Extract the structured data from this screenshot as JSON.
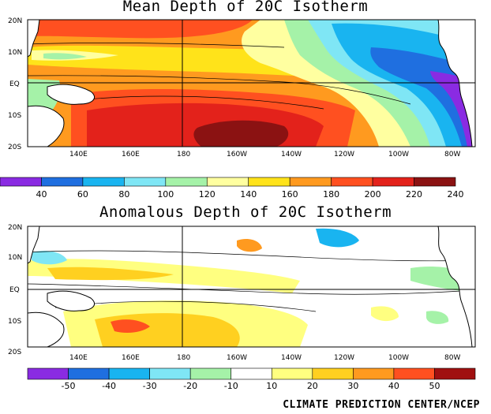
{
  "panels": [
    {
      "title": "Mean Depth of 20C Isotherm",
      "lat_labels": [
        "20N",
        "10N",
        "EQ",
        "10S",
        "20S"
      ],
      "lon_labels": [
        "140E",
        "160E",
        "180",
        "160W",
        "140W",
        "120W",
        "100W",
        "80W"
      ],
      "colorbar": {
        "colors": [
          "#8a2be2",
          "#1f6fe0",
          "#19b4f0",
          "#7fe6f5",
          "#a5f2a8",
          "#ffffa0",
          "#ffe31a",
          "#ff9a1f",
          "#ff5020",
          "#e3221b",
          "#8b1212"
        ],
        "labels": [
          "40",
          "60",
          "80",
          "100",
          "120",
          "140",
          "160",
          "180",
          "200",
          "220",
          "240"
        ]
      }
    },
    {
      "title": "Anomalous Depth of 20C Isotherm",
      "lat_labels": [
        "20N",
        "10N",
        "EQ",
        "10S",
        "20S"
      ],
      "lon_labels": [
        "140E",
        "160E",
        "180",
        "160W",
        "140W",
        "120W",
        "100W",
        "80W"
      ],
      "colorbar": {
        "colors": [
          "#8a2be2",
          "#1f6fe0",
          "#19b4f0",
          "#7fe6f5",
          "#a5f2a8",
          "#ffffff",
          "#ffff80",
          "#ffd020",
          "#ff9a1f",
          "#ff5020",
          "#a01010"
        ],
        "labels": [
          "-50",
          "-40",
          "-30",
          "-20",
          "-10",
          "10",
          "20",
          "30",
          "40",
          "50"
        ]
      }
    }
  ],
  "credit": "CLIMATE PREDICTION CENTER/NCEP"
}
